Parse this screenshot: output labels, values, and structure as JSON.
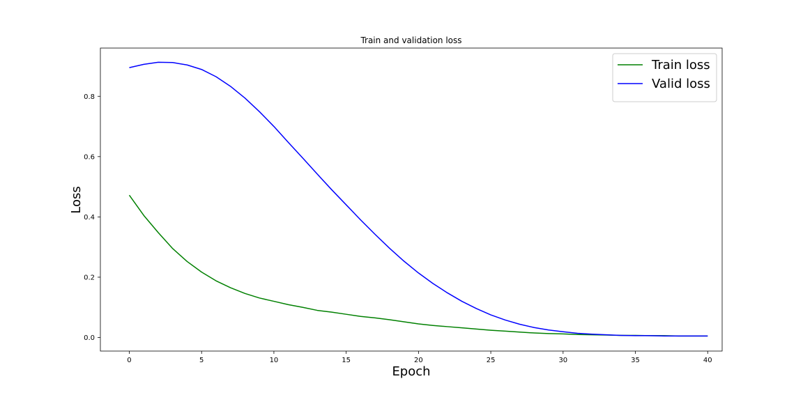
{
  "chart_data": {
    "type": "line",
    "title": "Train and validation loss",
    "xlabel": "Epoch",
    "ylabel": "Loss",
    "xlim": [
      -2,
      41
    ],
    "ylim": [
      -0.045,
      0.96
    ],
    "x_ticks": [
      0,
      5,
      10,
      15,
      20,
      25,
      30,
      35,
      40
    ],
    "y_ticks": [
      0.0,
      0.2,
      0.4,
      0.6,
      0.8
    ],
    "y_tick_labels": [
      "0.0",
      "0.2",
      "0.4",
      "0.6",
      "0.8"
    ],
    "grid": false,
    "legend_position": "top-right",
    "x": [
      0,
      1,
      2,
      3,
      4,
      5,
      6,
      7,
      8,
      9,
      10,
      11,
      12,
      13,
      14,
      15,
      16,
      17,
      18,
      19,
      20,
      21,
      22,
      23,
      24,
      25,
      26,
      27,
      28,
      29,
      30,
      31,
      32,
      33,
      34,
      35,
      36,
      37,
      38,
      39,
      40
    ],
    "series": [
      {
        "name": "Train loss",
        "color": "#008000",
        "values": [
          0.472,
          0.405,
          0.348,
          0.295,
          0.252,
          0.217,
          0.188,
          0.165,
          0.146,
          0.131,
          0.12,
          0.109,
          0.1,
          0.09,
          0.084,
          0.077,
          0.07,
          0.065,
          0.059,
          0.052,
          0.045,
          0.04,
          0.036,
          0.032,
          0.028,
          0.024,
          0.021,
          0.018,
          0.015,
          0.013,
          0.012,
          0.01,
          0.009,
          0.008,
          0.007,
          0.007,
          0.006,
          0.006,
          0.005,
          0.005,
          0.005
        ]
      },
      {
        "name": "Valid loss",
        "color": "#0000ff",
        "values": [
          0.895,
          0.906,
          0.913,
          0.912,
          0.904,
          0.889,
          0.865,
          0.833,
          0.794,
          0.749,
          0.7,
          0.647,
          0.595,
          0.542,
          0.49,
          0.44,
          0.39,
          0.342,
          0.296,
          0.253,
          0.214,
          0.179,
          0.148,
          0.12,
          0.096,
          0.075,
          0.058,
          0.044,
          0.033,
          0.025,
          0.019,
          0.014,
          0.011,
          0.009,
          0.007,
          0.006,
          0.006,
          0.005,
          0.005,
          0.005,
          0.005
        ]
      }
    ]
  }
}
